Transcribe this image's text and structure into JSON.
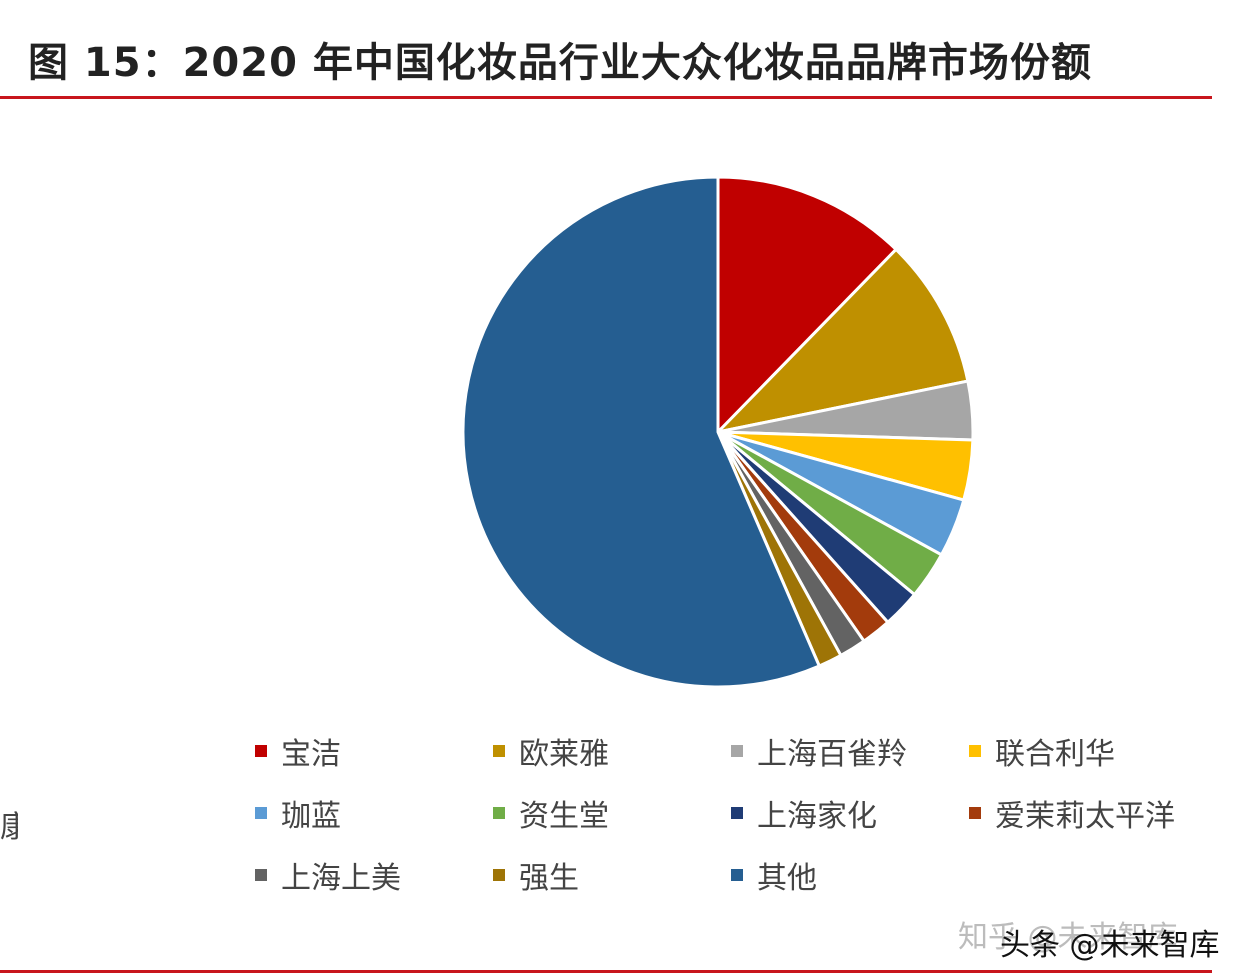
{
  "title": "图 15：2020 年中国化妆品行业大众化妆品品牌市场份额",
  "stray_label": "康",
  "watermark": "知乎 @未来智库",
  "byline": "头条 @未来智库",
  "chart_data": {
    "type": "pie",
    "title": "图 15：2020 年中国化妆品行业大众化妆品品牌市场份额",
    "categories": [
      "宝洁",
      "欧莱雅",
      "上海百雀羚",
      "联合利华",
      "珈蓝",
      "资生堂",
      "上海家化",
      "爱茉莉太平洋",
      "上海上美",
      "强生",
      "其他"
    ],
    "values": [
      12.3,
      9.5,
      3.7,
      3.8,
      3.7,
      3.0,
      2.4,
      1.9,
      1.7,
      1.5,
      56.5
    ],
    "unit": "%",
    "colors": [
      "#c00000",
      "#bf9000",
      "#a6a6a6",
      "#ffc000",
      "#5b9bd5",
      "#70ad47",
      "#1f3c75",
      "#a33b0c",
      "#636363",
      "#9e7406",
      "#255e91"
    ],
    "legend_position": "bottom",
    "data_labels": false
  }
}
